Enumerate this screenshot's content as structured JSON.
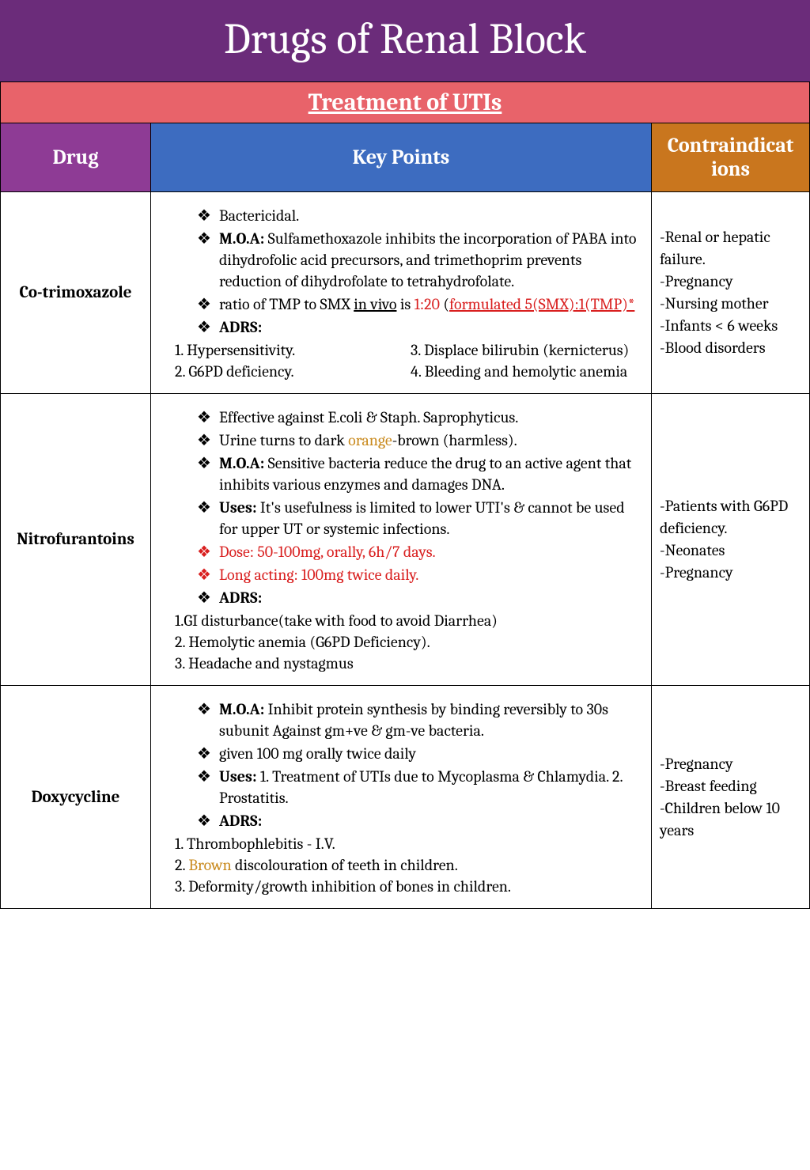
{
  "colors": {
    "title_bg": "#6b2c7a",
    "section_bg": "#e8636a",
    "drug_h_bg": "#8e3b95",
    "key_h_bg": "#3d6cc0",
    "contra_h_bg": "#c9761e",
    "text": "#000000",
    "text_light": "#ffffff",
    "red": "#d92020",
    "orange": "#c98a1e",
    "border": "#000000"
  },
  "title": "Drugs of Renal Block",
  "section": "Treatment of UTIs",
  "headers": {
    "drug": "Drug",
    "key": "Key Points",
    "contra": "Contraindicat ions"
  },
  "rows": [
    {
      "drug": "Co-trimoxazole",
      "key": {
        "bullets": [
          {
            "text": "Bactericidal."
          },
          {
            "lead_bold": "M.O.A:",
            "text": " Sulfamethoxazole inhibits the incorporation of PABA into dihydrofolic acid precursors, and trimethoprim prevents reduction of dihydrofolate to tetrahydrofolate."
          },
          {
            "composite": [
              {
                "t": "ratio of TMP to SMX "
              },
              {
                "t": "in vivo",
                "u": true
              },
              {
                "t": " is "
              },
              {
                "t": "1:20",
                "red": true
              },
              {
                "t": " ("
              },
              {
                "t": "formulated 5(SMX):1(TMP)*",
                "u": true,
                "red": true
              }
            ]
          },
          {
            "lead_bold": "ADRS:"
          }
        ],
        "adrs_cols": {
          "left": [
            "1. Hypersensitivity.",
            "2.  G6PD deficiency."
          ],
          "right": [
            "3. Displace bilirubin (kernicterus)",
            "4. Bleeding and hemolytic anemia"
          ]
        }
      },
      "contra": [
        "-Renal or hepatic failure.",
        "-Pregnancy",
        "-Nursing mother",
        "-Infants < 6 weeks",
        "-Blood disorders"
      ]
    },
    {
      "drug": "Nitrofurantoins",
      "key": {
        "bullets": [
          {
            "text": "Effective against E.coli & Staph. Saprophyticus."
          },
          {
            "composite": [
              {
                "t": "Urine turns to dark "
              },
              {
                "t": "orange",
                "orange": true
              },
              {
                "t": "-brown (harmless)."
              }
            ]
          },
          {
            "lead_bold": "M.O.A:",
            "text": " Sensitive bacteria reduce the drug to an active agent that inhibits various enzymes and damages DNA."
          },
          {
            "lead_bold": "Uses:",
            "text": " It's usefulness is limited to lower UTI's & cannot be used for upper UT or systemic infections."
          },
          {
            "text": "Dose: 50-100mg, orally, 6h/7 days.",
            "red_all": true
          },
          {
            "text": "Long acting: 100mg twice daily.",
            "red_all": true
          },
          {
            "lead_bold": "ADRS:"
          }
        ],
        "adrs_list": [
          "1.GI disturbance(take with food to avoid Diarrhea)",
          "2. Hemolytic anemia (G6PD Deficiency).",
          "3. Headache and nystagmus"
        ]
      },
      "contra": [
        "-Patients with G6PD deficiency.",
        "-Neonates",
        "-Pregnancy"
      ]
    },
    {
      "drug": "Doxycycline",
      "key": {
        "bullets": [
          {
            "lead_bold": "M.O.A:",
            "text": " Inhibit protein synthesis by binding reversibly to 30s subunit Against gm+ve & gm-ve bacteria."
          },
          {
            "text": "given 100 mg orally twice daily"
          },
          {
            "lead_bold": "Uses:",
            "text": " 1. Treatment of UTIs due to Mycoplasma & Chlamydia. 2. Prostatitis."
          },
          {
            "lead_bold": "ADRS:"
          }
        ],
        "adrs_list_rich": [
          {
            "parts": [
              {
                "t": "1. Thrombophlebitis - I.V."
              }
            ]
          },
          {
            "parts": [
              {
                "t": "2. "
              },
              {
                "t": "Brown",
                "orange": true
              },
              {
                "t": " discolouration of teeth in children."
              }
            ]
          },
          {
            "parts": [
              {
                "t": "3. Deformity/growth inhibition of bones in children."
              }
            ]
          }
        ]
      },
      "contra": [
        "-Pregnancy",
        "-Breast feeding",
        "-Children below 10 years"
      ]
    }
  ]
}
